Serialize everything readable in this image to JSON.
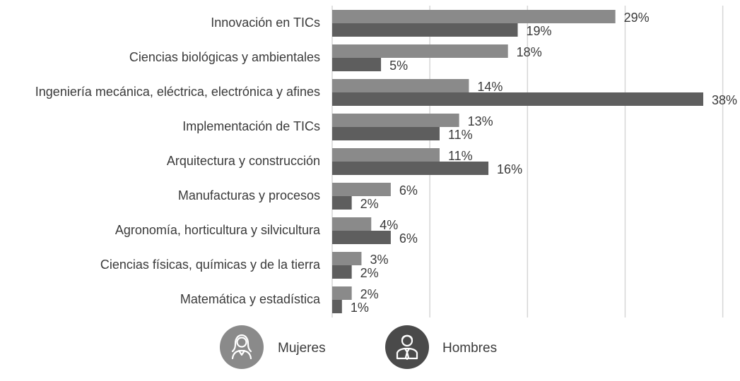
{
  "chart_data": {
    "type": "bar",
    "orientation": "horizontal",
    "categories": [
      "Innovación en TICs",
      "Ciencias biológicas y ambientales",
      "Ingeniería mecánica, eléctrica, electrónica y afines",
      "Implementación de TICs",
      "Arquitectura y construcción",
      "Manufacturas y procesos",
      "Agronomía, horticultura y silvicultura",
      "Ciencias físicas, químicas y de la tierra",
      "Matemática y estadística"
    ],
    "series": [
      {
        "name": "Mujeres",
        "color": "#8a8a8a",
        "values": [
          29,
          18,
          14,
          13,
          11,
          6,
          4,
          3,
          2
        ],
        "labels": [
          "29%",
          "18%",
          "14%",
          "13%",
          "11%",
          "6%",
          "4%",
          "3%",
          "2%"
        ]
      },
      {
        "name": "Hombres",
        "color": "#5e5e5e",
        "values": [
          19,
          5,
          38,
          11,
          16,
          2,
          6,
          2,
          1
        ],
        "labels": [
          "19%",
          "5%",
          "38%",
          "11%",
          "16%",
          "2%",
          "6%",
          "2%",
          "1%"
        ]
      }
    ],
    "xlim": [
      0,
      38
    ],
    "grid": true,
    "legend_position": "bottom",
    "legend_icons": [
      "woman-avatar-icon",
      "man-avatar-icon"
    ],
    "colors": {
      "grid": "#d6d6d6",
      "legend_mujeres_circle": "#8a8a8a",
      "legend_hombres_circle": "#4a4a4a"
    }
  }
}
